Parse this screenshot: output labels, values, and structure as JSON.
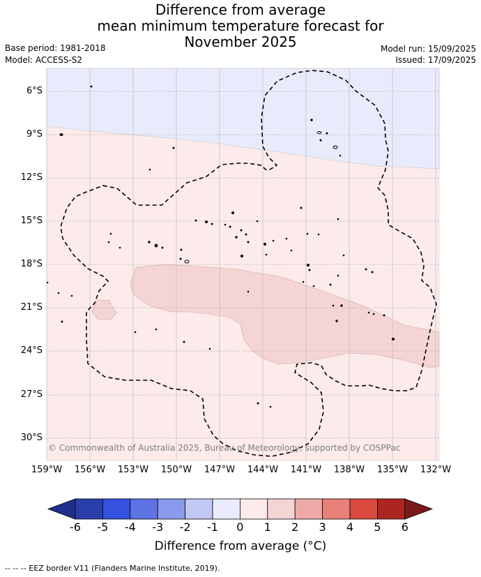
{
  "title": {
    "line1": "Difference from average",
    "line2": "mean minimum temperature forecast for",
    "line3": "November 2025"
  },
  "meta": {
    "base_period": "Base period: 1981-2018",
    "model": "Model: ACCESS-S2",
    "model_run": "Model run: 15/09/2025",
    "issued": "Issued: 17/09/2025"
  },
  "map": {
    "lat_labels": [
      "6°S",
      "9°S",
      "12°S",
      "15°S",
      "18°S",
      "21°S",
      "24°S",
      "27°S",
      "30°S"
    ],
    "lon_labels": [
      "159°W",
      "156°W",
      "153°W",
      "150°W",
      "147°W",
      "144°W",
      "141°W",
      "138°W",
      "135°W",
      "132°W"
    ],
    "copyright": "© Commonwealth of Australia 2025, Bureau of Meteorology, supported by COSPPac",
    "colors": {
      "cool_-1_0": "#e8ebfb",
      "warm_0_1": "#fcebea",
      "warm_1_2": "#f5d5d4",
      "eez_border": "#000000",
      "gridline": "#9a9a9a"
    }
  },
  "colorbar": {
    "ticks": [
      "-6",
      "-5",
      "-4",
      "-3",
      "-2",
      "-1",
      "0",
      "1",
      "2",
      "3",
      "4",
      "5",
      "6"
    ],
    "colors": [
      "#1f2f8f",
      "#2a3eaa",
      "#3551e0",
      "#5e73e4",
      "#8a9aec",
      "#c2c8f4",
      "#eaebfc",
      "#fcebea",
      "#f5d5d4",
      "#eeaaa8",
      "#e88179",
      "#db4a40",
      "#ad2520",
      "#7a1a18"
    ],
    "title": "Difference from average (°C)"
  },
  "footnote": "--  --  -- EEZ border V11 (Flanders Marine Institute, 2019)."
}
